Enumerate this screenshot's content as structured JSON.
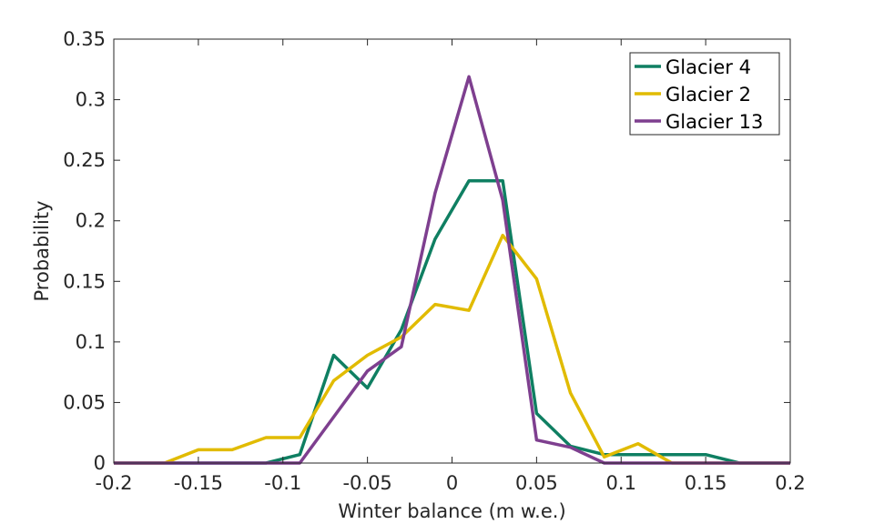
{
  "chart_data": {
    "type": "line",
    "xlabel": "Winter balance (m w.e.)",
    "ylabel": "Probability",
    "xlim": [
      -0.2,
      0.2
    ],
    "ylim": [
      0,
      0.35
    ],
    "xticks": [
      "-0.2",
      "-0.15",
      "-0.1",
      "-0.05",
      "0",
      "0.05",
      "0.1",
      "0.15",
      "0.2"
    ],
    "yticks": [
      "0",
      "0.05",
      "0.1",
      "0.15",
      "0.2",
      "0.25",
      "0.3",
      "0.35"
    ],
    "xtick_values": [
      -0.2,
      -0.15,
      -0.1,
      -0.05,
      0,
      0.05,
      0.1,
      0.15,
      0.2
    ],
    "ytick_values": [
      0,
      0.05,
      0.1,
      0.15,
      0.2,
      0.25,
      0.3,
      0.35
    ],
    "grid": false,
    "legend_position": "top-right",
    "series": [
      {
        "name": "Glacier 4",
        "color": "#0f7f62",
        "x": [
          -0.2,
          -0.17,
          -0.15,
          -0.13,
          -0.11,
          -0.09,
          -0.07,
          -0.05,
          -0.03,
          -0.01,
          0.01,
          0.03,
          0.05,
          0.07,
          0.09,
          0.11,
          0.13,
          0.15,
          0.17,
          0.2
        ],
        "y": [
          0,
          0,
          0,
          0,
          0,
          0.007,
          0.089,
          0.062,
          0.11,
          0.185,
          0.233,
          0.233,
          0.041,
          0.014,
          0.007,
          0.007,
          0.007,
          0.007,
          0,
          0
        ]
      },
      {
        "name": "Glacier 2",
        "color": "#e1bb00",
        "x": [
          -0.2,
          -0.17,
          -0.15,
          -0.13,
          -0.11,
          -0.09,
          -0.07,
          -0.05,
          -0.03,
          -0.01,
          0.01,
          0.03,
          0.05,
          0.07,
          0.09,
          0.11,
          0.13,
          0.15,
          0.17,
          0.2
        ],
        "y": [
          0,
          0,
          0.011,
          0.011,
          0.021,
          0.021,
          0.068,
          0.089,
          0.104,
          0.131,
          0.126,
          0.188,
          0.152,
          0.058,
          0.005,
          0.016,
          0,
          0,
          0,
          0
        ]
      },
      {
        "name": "Glacier 13",
        "color": "#7e3f8f",
        "x": [
          -0.2,
          -0.17,
          -0.15,
          -0.13,
          -0.11,
          -0.09,
          -0.07,
          -0.05,
          -0.03,
          -0.01,
          0.01,
          0.03,
          0.05,
          0.07,
          0.09,
          0.11,
          0.13,
          0.15,
          0.17,
          0.2
        ],
        "y": [
          0,
          0,
          0,
          0,
          0,
          0,
          0.038,
          0.076,
          0.096,
          0.223,
          0.319,
          0.217,
          0.019,
          0.013,
          0,
          0,
          0,
          0,
          0,
          0
        ]
      }
    ]
  }
}
